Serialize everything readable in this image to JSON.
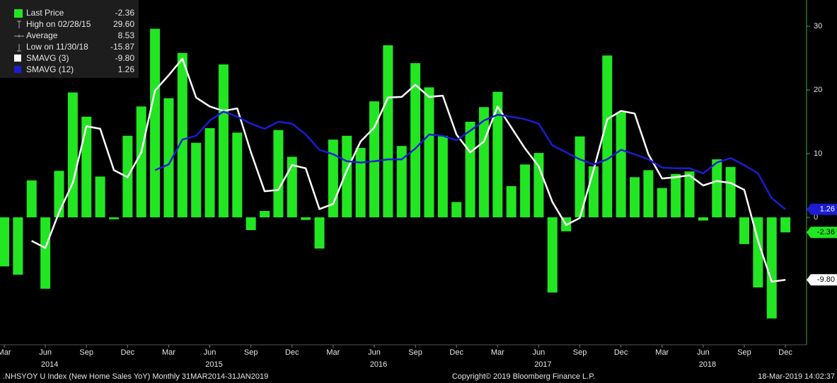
{
  "chart_data": {
    "type": "bar",
    "categories": [
      "Mar",
      null,
      null,
      "Jun",
      null,
      null,
      "Sep",
      null,
      null,
      "Dec",
      null,
      null,
      "Mar",
      null,
      null,
      "Jun",
      null,
      null,
      "Sep",
      null,
      null,
      "Dec",
      null,
      null,
      "Mar",
      null,
      null,
      "Jun",
      null,
      null,
      "Sep",
      null,
      null,
      "Dec",
      null,
      null,
      "Mar",
      null,
      null,
      "Jun",
      null,
      null,
      "Sep",
      null,
      null,
      "Dec",
      null,
      null,
      "Mar",
      null,
      null,
      "Jun",
      null,
      null,
      "Sep",
      null,
      null,
      "Dec"
    ],
    "years": [
      "2014",
      "2015",
      "2016",
      "2017",
      "2018"
    ],
    "series": [
      {
        "name": "Last Price",
        "type": "bar",
        "color": "#22e622",
        "last": -2.36,
        "values": [
          -7.7,
          -9,
          5.8,
          -11.2,
          7.3,
          19.6,
          15.8,
          6.4,
          -0.3,
          12.8,
          17.4,
          29.6,
          18.7,
          25.8,
          11.7,
          14,
          24,
          13.3,
          -2,
          1,
          13.7,
          9.5,
          -0.4,
          -4.9,
          12.2,
          12.8,
          10.9,
          18.2,
          27,
          11.2,
          24.2,
          20.4,
          12.8,
          2.4,
          15,
          17.3,
          19.7,
          4.9,
          8.3,
          10.1,
          -11.8,
          -2.2,
          12.7,
          8,
          25.4,
          16.5,
          6.3,
          7.4,
          4.6,
          6.8,
          7.2,
          -0.5,
          9.1,
          7.9,
          -4.2,
          -11,
          -15.87,
          -2.36
        ]
      },
      {
        "name": "SMAVG (3)",
        "type": "line",
        "color": "#ffffff",
        "last": {
          "value": -9.8,
          "label": "-9.80"
        },
        "values": [
          null,
          null,
          -3.7,
          -4.8,
          0.8,
          5.4,
          14.3,
          13.9,
          7.4,
          6.3,
          10.2,
          19.9,
          22.3,
          24.9,
          18.8,
          17.4,
          16.7,
          17.1,
          10.2,
          4.1,
          4.3,
          8.2,
          7.7,
          1.3,
          2.1,
          7.4,
          11.9,
          14.1,
          18.8,
          18.9,
          20.8,
          18.9,
          19.1,
          13,
          10.2,
          11.9,
          17.4,
          14.1,
          10.8,
          8,
          2.4,
          -1.2,
          -0.1,
          7.4,
          15.4,
          16.7,
          16.3,
          9.9,
          6.1,
          6.3,
          6.6,
          5,
          5.7,
          5.4,
          4.3,
          -3.7,
          -10.1,
          -9.8
        ]
      },
      {
        "name": "SMAVG (12)",
        "type": "line",
        "color": "#1c1cd2",
        "last": 1.26,
        "values": [
          null,
          null,
          null,
          null,
          null,
          null,
          null,
          null,
          null,
          null,
          null,
          7.4,
          8.3,
          12.2,
          12.8,
          15.2,
          16.6,
          15.8,
          14.7,
          13.9,
          15,
          14.7,
          13,
          10.6,
          9.9,
          8.8,
          8.6,
          8.8,
          9.1,
          9.1,
          10.8,
          13,
          12.8,
          12.1,
          13.6,
          15.2,
          16.1,
          15.8,
          15.4,
          14.7,
          11.3,
          10.2,
          9.1,
          8.3,
          9.1,
          10.6,
          9.9,
          9.1,
          7.8,
          7.7,
          7.7,
          6.9,
          8.6,
          9.3,
          8.2,
          6.9,
          3,
          1.26
        ]
      }
    ],
    "stats": [
      {
        "label": "High on 02/28/15",
        "value": {
          "value": 29.6,
          "label": "29.60"
        }
      },
      {
        "label": "Average",
        "value": 8.53
      },
      {
        "label": "Low on 11/30/18",
        "value": -15.87
      }
    ],
    "ylim": [
      -20,
      34
    ],
    "yticks": [
      0,
      10,
      20,
      30
    ],
    "footer": {
      "left": ".NHSYOY U Index (New Home Sales YoY)  Monthly 31MAR2014-31JAN2019",
      "center": "Copyright© 2019 Bloomberg Finance L.P.",
      "right": "18-Mar-2019 14:02:37"
    }
  }
}
